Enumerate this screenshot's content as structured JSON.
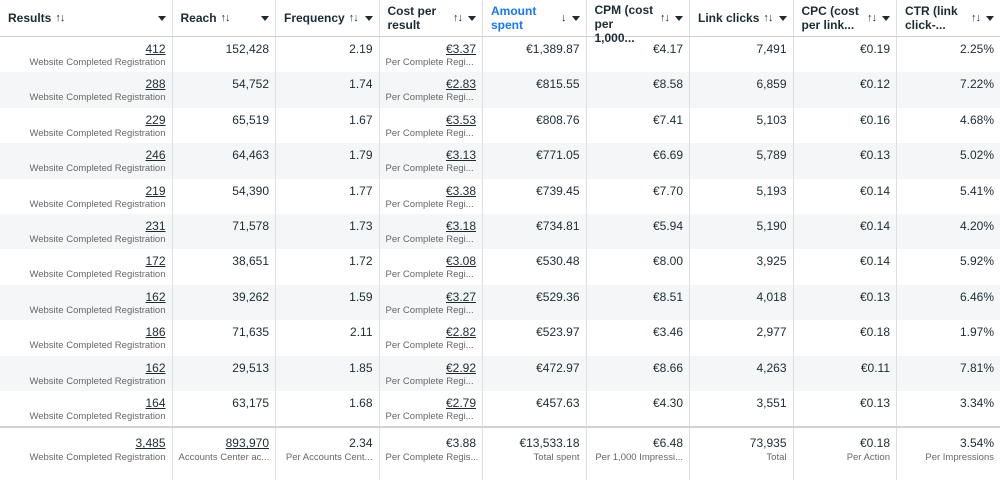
{
  "columns": [
    {
      "label": "Results",
      "active": false
    },
    {
      "label": "Reach",
      "active": false
    },
    {
      "label": "Frequency",
      "active": false
    },
    {
      "label": "Cost per result",
      "active": false
    },
    {
      "label": "Amount spent",
      "active": true
    },
    {
      "label": "CPM (cost per 1,000...",
      "active": false
    },
    {
      "label": "Link clicks",
      "active": false
    },
    {
      "label": "CPC (cost per link...",
      "active": false
    },
    {
      "label": "CTR (link click-...",
      "active": false
    }
  ],
  "icons": {
    "sort": "sort-arrows-icon",
    "sort_desc": "arrow-down-icon",
    "dropdown": "caret-down-icon"
  },
  "accent_color": "#1877f2",
  "result_label": "Website Completed Registration",
  "cost_sub": "Per Complete Regi...",
  "rows": [
    {
      "results": "412",
      "reach": "152,428",
      "frequency": "2.19",
      "cost": "€3.37",
      "spent": "€1,389.87",
      "cpm": "€4.17",
      "clicks": "7,491",
      "cpc": "€0.19",
      "ctr": "2.25%"
    },
    {
      "results": "288",
      "reach": "54,752",
      "frequency": "1.74",
      "cost": "€2.83",
      "spent": "€815.55",
      "cpm": "€8.58",
      "clicks": "6,859",
      "cpc": "€0.12",
      "ctr": "7.22%"
    },
    {
      "results": "229",
      "reach": "65,519",
      "frequency": "1.67",
      "cost": "€3.53",
      "spent": "€808.76",
      "cpm": "€7.41",
      "clicks": "5,103",
      "cpc": "€0.16",
      "ctr": "4.68%"
    },
    {
      "results": "246",
      "reach": "64,463",
      "frequency": "1.79",
      "cost": "€3.13",
      "spent": "€771.05",
      "cpm": "€6.69",
      "clicks": "5,789",
      "cpc": "€0.13",
      "ctr": "5.02%"
    },
    {
      "results": "219",
      "reach": "54,390",
      "frequency": "1.77",
      "cost": "€3.38",
      "spent": "€739.45",
      "cpm": "€7.70",
      "clicks": "5,193",
      "cpc": "€0.14",
      "ctr": "5.41%"
    },
    {
      "results": "231",
      "reach": "71,578",
      "frequency": "1.73",
      "cost": "€3.18",
      "spent": "€734.81",
      "cpm": "€5.94",
      "clicks": "5,190",
      "cpc": "€0.14",
      "ctr": "4.20%"
    },
    {
      "results": "172",
      "reach": "38,651",
      "frequency": "1.72",
      "cost": "€3.08",
      "spent": "€530.48",
      "cpm": "€8.00",
      "clicks": "3,925",
      "cpc": "€0.14",
      "ctr": "5.92%"
    },
    {
      "results": "162",
      "reach": "39,262",
      "frequency": "1.59",
      "cost": "€3.27",
      "spent": "€529.36",
      "cpm": "€8.51",
      "clicks": "4,018",
      "cpc": "€0.13",
      "ctr": "6.46%"
    },
    {
      "results": "186",
      "reach": "71,635",
      "frequency": "2.11",
      "cost": "€2.82",
      "spent": "€523.97",
      "cpm": "€3.46",
      "clicks": "2,977",
      "cpc": "€0.18",
      "ctr": "1.97%"
    },
    {
      "results": "162",
      "reach": "29,513",
      "frequency": "1.85",
      "cost": "€2.92",
      "spent": "€472.97",
      "cpm": "€8.66",
      "clicks": "4,263",
      "cpc": "€0.11",
      "ctr": "7.81%"
    },
    {
      "results": "164",
      "reach": "63,175",
      "frequency": "1.68",
      "cost": "€2.79",
      "spent": "€457.63",
      "cpm": "€4.30",
      "clicks": "3,551",
      "cpc": "€0.13",
      "ctr": "3.34%"
    }
  ],
  "totals": {
    "results": {
      "value": "3,485",
      "sub": "Website Completed Registration"
    },
    "reach": {
      "value": "893,970",
      "sub": "Accounts Center ac..."
    },
    "frequency": {
      "value": "2.34",
      "sub": "Per Accounts Cent..."
    },
    "cost": {
      "value": "€3.88",
      "sub": "Per Complete Regis..."
    },
    "spent": {
      "value": "€13,533.18",
      "sub": "Total spent"
    },
    "cpm": {
      "value": "€6.48",
      "sub": "Per 1,000 Impressi..."
    },
    "clicks": {
      "value": "73,935",
      "sub": "Total"
    },
    "cpc": {
      "value": "€0.18",
      "sub": "Per Action"
    },
    "ctr": {
      "value": "3.54%",
      "sub": "Per Impressions"
    }
  }
}
